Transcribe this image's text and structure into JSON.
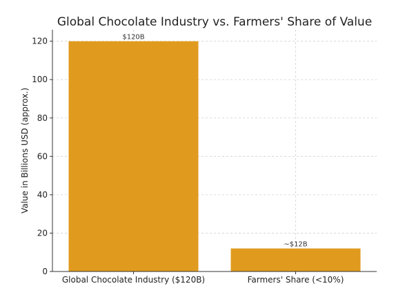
{
  "chart_data": {
    "type": "bar",
    "title": "Global Chocolate Industry vs. Farmers' Share of Value",
    "xlabel": "",
    "ylabel": "Value in Billions USD (approx.)",
    "categories": [
      "Global Chocolate Industry ($120B)",
      "Farmers' Share (<10%)"
    ],
    "values": [
      120,
      12
    ],
    "bar_labels": [
      "$120B",
      "~$12B"
    ],
    "ylim": [
      0,
      126
    ],
    "yticks": [
      0,
      20,
      40,
      60,
      80,
      100,
      120
    ],
    "grid": true,
    "bar_color": "#E09B1F"
  }
}
